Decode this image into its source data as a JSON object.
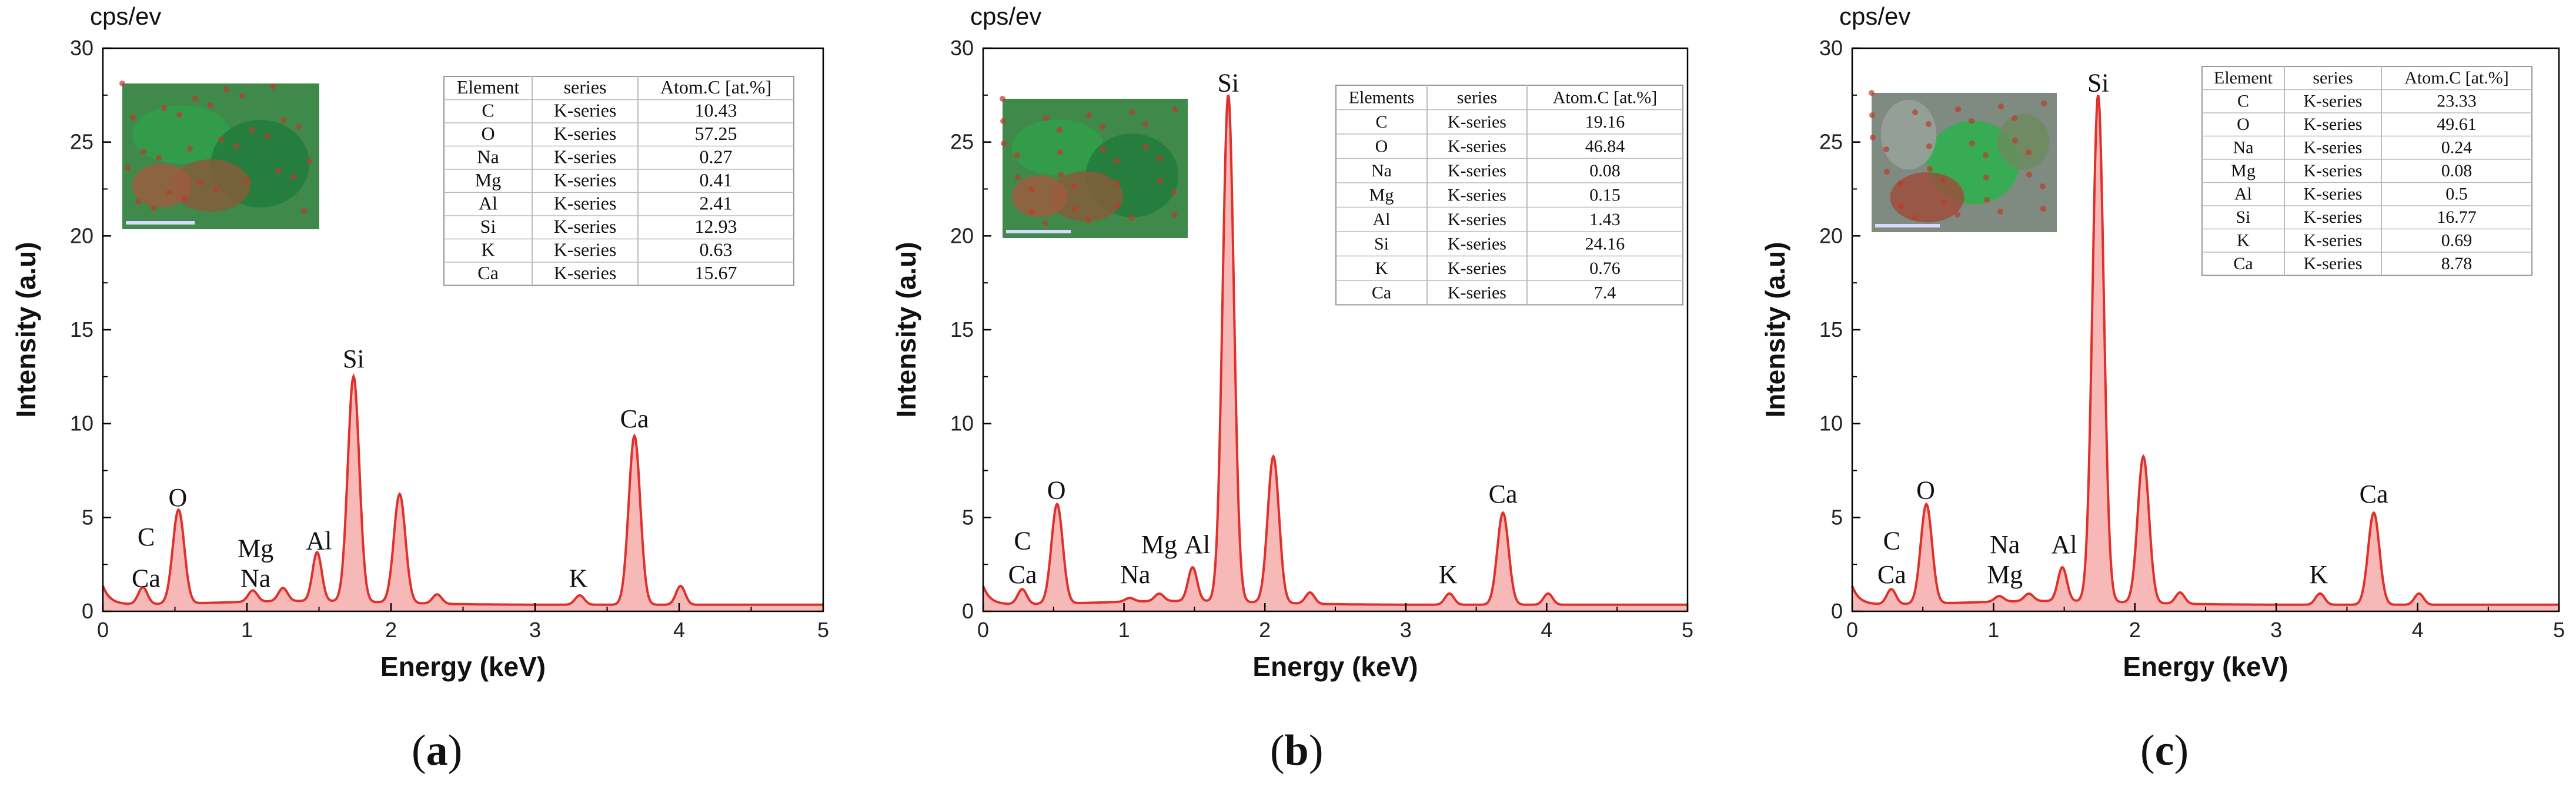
{
  "style": {
    "fill_color": "#f6b9b7",
    "line_color": "#e0302a",
    "axis_color": "#000000",
    "table_border": "#999999"
  },
  "chart_data": [
    {
      "type": "area",
      "panel_label": "a",
      "unit_label": "cps/ev",
      "xlabel": "Energy (keV)",
      "ylabel": "Intensity (a.u)",
      "xlim": [
        0,
        5
      ],
      "ylim": [
        0,
        30
      ],
      "xticks": [
        "0",
        "1",
        "2",
        "3",
        "4",
        "5"
      ],
      "yticks": [
        "0",
        "5",
        "10",
        "15",
        "20",
        "25",
        "30"
      ],
      "peaks": [
        {
          "x": 0.277,
          "h": 0.9
        },
        {
          "x": 0.525,
          "h": 5.0
        },
        {
          "x": 1.04,
          "h": 0.6
        },
        {
          "x": 1.25,
          "h": 0.7
        },
        {
          "x": 1.487,
          "h": 2.6
        },
        {
          "x": 1.74,
          "h": 12.0
        },
        {
          "x": 2.06,
          "h": 5.8
        },
        {
          "x": 2.32,
          "h": 0.5
        },
        {
          "x": 3.31,
          "h": 0.5
        },
        {
          "x": 3.69,
          "h": 9.0
        },
        {
          "x": 4.01,
          "h": 1.0
        }
      ],
      "annotations": [
        {
          "text": "C",
          "x": 0.3,
          "y": 3.5
        },
        {
          "text": "Ca",
          "x": 0.3,
          "y": 1.3
        },
        {
          "text": "O",
          "x": 0.52,
          "y": 5.6
        },
        {
          "text": "Mg",
          "x": 1.06,
          "y": 2.9
        },
        {
          "text": "Na",
          "x": 1.06,
          "y": 1.3
        },
        {
          "text": "Al",
          "x": 1.5,
          "y": 3.3
        },
        {
          "text": "Si",
          "x": 1.74,
          "y": 13.0
        },
        {
          "text": "K",
          "x": 3.3,
          "y": 1.3
        },
        {
          "text": "Ca",
          "x": 3.69,
          "y": 9.8
        }
      ],
      "table": {
        "headers": [
          "Element",
          "series",
          "Atom.C [at.%]"
        ],
        "rows": [
          [
            "C",
            "K-series",
            "10.43"
          ],
          [
            "O",
            "K-series",
            "57.25"
          ],
          [
            "Na",
            "K-series",
            "0.27"
          ],
          [
            "Mg",
            "K-series",
            "0.41"
          ],
          [
            "Al",
            "K-series",
            "2.41"
          ],
          [
            "Si",
            "K-series",
            "12.93"
          ],
          [
            "K",
            "K-series",
            "0.63"
          ],
          [
            "Ca",
            "K-series",
            "15.67"
          ]
        ]
      }
    },
    {
      "type": "area",
      "panel_label": "b",
      "unit_label": "cps/ev",
      "xlabel": "Energy (keV)",
      "ylabel": "Intensity (a.u)",
      "xlim": [
        0,
        5
      ],
      "ylim": [
        0,
        30
      ],
      "xticks": [
        "0",
        "1",
        "2",
        "3",
        "4",
        "5"
      ],
      "yticks": [
        "0",
        "5",
        "10",
        "15",
        "20",
        "25",
        "30"
      ],
      "peaks": [
        {
          "x": 0.277,
          "h": 0.8
        },
        {
          "x": 0.525,
          "h": 5.3
        },
        {
          "x": 1.04,
          "h": 0.2
        },
        {
          "x": 1.25,
          "h": 0.4
        },
        {
          "x": 1.487,
          "h": 1.8
        },
        {
          "x": 1.74,
          "h": 27.0
        },
        {
          "x": 2.06,
          "h": 7.8
        },
        {
          "x": 2.32,
          "h": 0.6
        },
        {
          "x": 3.31,
          "h": 0.6
        },
        {
          "x": 3.69,
          "h": 4.9
        },
        {
          "x": 4.01,
          "h": 0.6
        }
      ],
      "annotations": [
        {
          "text": "C",
          "x": 0.28,
          "y": 3.3
        },
        {
          "text": "Ca",
          "x": 0.28,
          "y": 1.5
        },
        {
          "text": "O",
          "x": 0.52,
          "y": 6.0
        },
        {
          "text": "Na",
          "x": 1.08,
          "y": 1.5
        },
        {
          "text": "Mg",
          "x": 1.25,
          "y": 3.1
        },
        {
          "text": "Al",
          "x": 1.52,
          "y": 3.1
        },
        {
          "text": "Si",
          "x": 1.74,
          "y": 27.7
        },
        {
          "text": "K",
          "x": 3.3,
          "y": 1.5
        },
        {
          "text": "Ca",
          "x": 3.69,
          "y": 5.8
        }
      ],
      "table": {
        "headers": [
          "Elements",
          "series",
          "Atom.C [at.%]"
        ],
        "rows": [
          [
            "C",
            "K-series",
            "19.16"
          ],
          [
            "O",
            "K-series",
            "46.84"
          ],
          [
            "Na",
            "K-series",
            "0.08"
          ],
          [
            "Mg",
            "K-series",
            "0.15"
          ],
          [
            "Al",
            "K-series",
            "1.43"
          ],
          [
            "Si",
            "K-series",
            "24.16"
          ],
          [
            "K",
            "K-series",
            "0.76"
          ],
          [
            "Ca",
            "K-series",
            "7.4"
          ]
        ]
      }
    },
    {
      "type": "area",
      "panel_label": "c",
      "unit_label": "cps/ev",
      "xlabel": "Energy (keV)",
      "ylabel": "Intensity (a.u)",
      "xlim": [
        0,
        5
      ],
      "ylim": [
        0,
        30
      ],
      "xticks": [
        "0",
        "1",
        "2",
        "3",
        "4",
        "5"
      ],
      "yticks": [
        "0",
        "5",
        "10",
        "15",
        "20",
        "25",
        "30"
      ],
      "peaks": [
        {
          "x": 0.277,
          "h": 0.8
        },
        {
          "x": 0.525,
          "h": 5.3
        },
        {
          "x": 1.04,
          "h": 0.3
        },
        {
          "x": 1.25,
          "h": 0.4
        },
        {
          "x": 1.487,
          "h": 1.8
        },
        {
          "x": 1.74,
          "h": 27.0
        },
        {
          "x": 2.06,
          "h": 7.8
        },
        {
          "x": 2.32,
          "h": 0.6
        },
        {
          "x": 3.31,
          "h": 0.6
        },
        {
          "x": 3.69,
          "h": 4.9
        },
        {
          "x": 4.01,
          "h": 0.6
        }
      ],
      "annotations": [
        {
          "text": "C",
          "x": 0.28,
          "y": 3.3
        },
        {
          "text": "Ca",
          "x": 0.28,
          "y": 1.5
        },
        {
          "text": "O",
          "x": 0.52,
          "y": 6.0
        },
        {
          "text": "Na",
          "x": 1.08,
          "y": 3.1
        },
        {
          "text": "Mg",
          "x": 1.08,
          "y": 1.5
        },
        {
          "text": "Al",
          "x": 1.5,
          "y": 3.1
        },
        {
          "text": "Si",
          "x": 1.74,
          "y": 27.7
        },
        {
          "text": "K",
          "x": 3.3,
          "y": 1.5
        },
        {
          "text": "Ca",
          "x": 3.69,
          "y": 5.8
        }
      ],
      "table": {
        "headers": [
          "Element",
          "series",
          "Atom.C [at.%]"
        ],
        "rows": [
          [
            "C",
            "K-series",
            "23.33"
          ],
          [
            "O",
            "K-series",
            "49.61"
          ],
          [
            "Na",
            "K-series",
            "0.24"
          ],
          [
            "Mg",
            "K-series",
            "0.08"
          ],
          [
            "Al",
            "K-series",
            "0.5"
          ],
          [
            "Si",
            "K-series",
            "16.77"
          ],
          [
            "K",
            "K-series",
            "0.69"
          ],
          [
            "Ca",
            "K-series",
            "8.78"
          ]
        ]
      }
    }
  ]
}
